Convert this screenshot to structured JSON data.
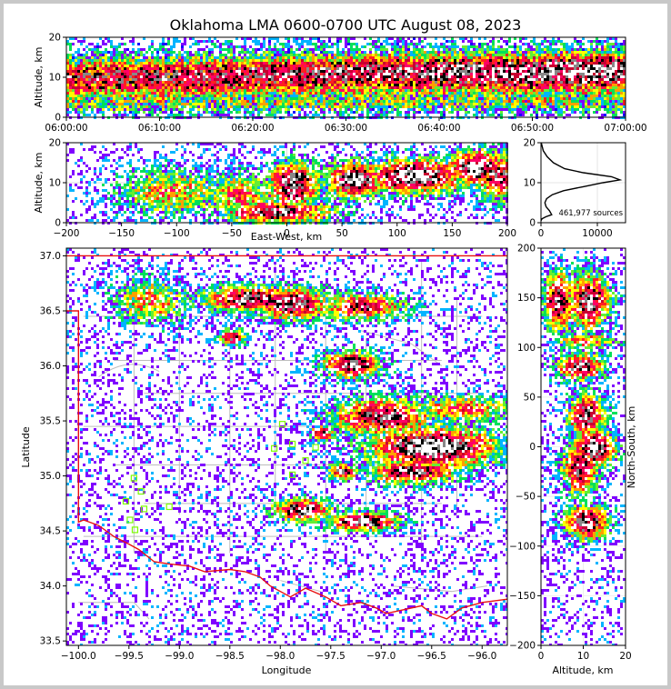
{
  "title": "Oklahoma LMA 0600-0700 UTC August 08, 2023",
  "colors": {
    "border_frame": "#c8c8c8",
    "state_border": "#e81010",
    "county_lines": "#bdbdbd",
    "station_marker": "#7cfc00",
    "profile_line": "#000000",
    "density_scale": [
      "#1a00ff",
      "#7f00ff",
      "#00b4ff",
      "#00e05a",
      "#66ee33",
      "#ffff00",
      "#ffa000",
      "#ff2020",
      "#ff0066",
      "#c80030",
      "#000000",
      "#888888",
      "#ffffff"
    ]
  },
  "chart_data": [
    {
      "id": "time_height",
      "type": "heatmap",
      "xlabel": "",
      "ylabel": "Altitude, km",
      "xticks": [
        "06:00:00",
        "06:10:00",
        "06:20:00",
        "06:30:00",
        "06:40:00",
        "06:50:00",
        "07:00:00"
      ],
      "yticks": [
        "0",
        "10",
        "20"
      ],
      "xlim": [
        "06:00:00",
        "07:00:00"
      ],
      "ylim": [
        0,
        20
      ],
      "core_altitude_km": [
        10.2,
        10.2,
        10.8,
        11.2,
        11.5,
        11.5,
        12.0
      ],
      "core_density_level": [
        0.72,
        0.75,
        0.78,
        0.8,
        0.85,
        0.9,
        0.95
      ]
    },
    {
      "id": "ew_altitude",
      "type": "heatmap",
      "xlabel": "East-West, km",
      "ylabel": "Altitude, km",
      "xticks": [
        "−200",
        "−150",
        "−100",
        "−50",
        "0",
        "50",
        "100",
        "150",
        "200"
      ],
      "yticks": [
        "0",
        "10",
        "20"
      ],
      "xlim": [
        -200,
        200
      ],
      "ylim": [
        0,
        20
      ],
      "blobs": [
        {
          "x": -105,
          "y": 8,
          "sx": 35,
          "sy": 4,
          "level": 0.5
        },
        {
          "x": -45,
          "y": 7,
          "sx": 22,
          "sy": 4,
          "level": 0.55
        },
        {
          "x": 5,
          "y": 10,
          "sx": 16,
          "sy": 4,
          "level": 0.9
        },
        {
          "x": -10,
          "y": 3,
          "sx": 35,
          "sy": 2,
          "level": 0.85
        },
        {
          "x": 60,
          "y": 11,
          "sx": 18,
          "sy": 3,
          "level": 0.97
        },
        {
          "x": 115,
          "y": 12,
          "sx": 32,
          "sy": 3,
          "level": 0.95
        },
        {
          "x": 170,
          "y": 14,
          "sx": 18,
          "sy": 3,
          "level": 0.92
        },
        {
          "x": 190,
          "y": 12,
          "sx": 15,
          "sy": 4,
          "level": 0.8
        }
      ]
    },
    {
      "id": "altitude_histogram",
      "type": "line",
      "xlabel": "",
      "ylabel": "",
      "xticks": [
        "0",
        "10000"
      ],
      "yticks": [
        "0",
        "10",
        "20"
      ],
      "xlim": [
        0,
        15000
      ],
      "ylim": [
        0,
        20
      ],
      "annotation": "461,977 sources",
      "profile": [
        {
          "alt": 0.5,
          "count": 0
        },
        {
          "alt": 1,
          "count": 200
        },
        {
          "alt": 1.5,
          "count": 900
        },
        {
          "alt": 2,
          "count": 1900
        },
        {
          "alt": 3,
          "count": 1500
        },
        {
          "alt": 4,
          "count": 900
        },
        {
          "alt": 5,
          "count": 700
        },
        {
          "alt": 6,
          "count": 1000
        },
        {
          "alt": 7,
          "count": 2000
        },
        {
          "alt": 8,
          "count": 4000
        },
        {
          "alt": 9,
          "count": 7500
        },
        {
          "alt": 10,
          "count": 11000
        },
        {
          "alt": 10.7,
          "count": 14000
        },
        {
          "alt": 11.5,
          "count": 12500
        },
        {
          "alt": 12.5,
          "count": 7500
        },
        {
          "alt": 13.5,
          "count": 4200
        },
        {
          "alt": 15,
          "count": 2200
        },
        {
          "alt": 16.5,
          "count": 1100
        },
        {
          "alt": 18,
          "count": 400
        },
        {
          "alt": 20,
          "count": 50
        }
      ]
    },
    {
      "id": "plan_view",
      "type": "heatmap",
      "xlabel": "Longitude",
      "ylabel": "Latitude",
      "xticks": [
        "−100.0",
        "−99.5",
        "−99.0",
        "−98.5",
        "−98.0",
        "−97.5",
        "−97.0",
        "−96.5",
        "−96.0"
      ],
      "yticks": [
        "33.5",
        "34.0",
        "34.5",
        "35.0",
        "35.5",
        "36.0",
        "36.5",
        "37.0"
      ],
      "xlim": [
        -100.12,
        -95.75
      ],
      "ylim": [
        33.46,
        37.07
      ],
      "blobs": [
        {
          "lon": -99.3,
          "lat": 36.6,
          "slon": 0.25,
          "slat": 0.15,
          "level": 0.5
        },
        {
          "lon": -98.3,
          "lat": 36.62,
          "slon": 0.35,
          "slat": 0.08,
          "level": 0.85
        },
        {
          "lon": -97.9,
          "lat": 36.58,
          "slon": 0.25,
          "slat": 0.1,
          "level": 0.9
        },
        {
          "lon": -97.2,
          "lat": 36.55,
          "slon": 0.3,
          "slat": 0.08,
          "level": 0.75
        },
        {
          "lon": -98.5,
          "lat": 36.27,
          "slon": 0.1,
          "slat": 0.05,
          "level": 0.75
        },
        {
          "lon": -97.3,
          "lat": 36.02,
          "slon": 0.2,
          "slat": 0.08,
          "level": 0.92
        },
        {
          "lon": -97.0,
          "lat": 35.55,
          "slon": 0.35,
          "slat": 0.12,
          "level": 0.82
        },
        {
          "lon": -96.5,
          "lat": 35.27,
          "slon": 0.45,
          "slat": 0.13,
          "level": 1.0
        },
        {
          "lon": -96.2,
          "lat": 35.62,
          "slon": 0.35,
          "slat": 0.08,
          "level": 0.6
        },
        {
          "lon": -96.7,
          "lat": 35.05,
          "slon": 0.3,
          "slat": 0.08,
          "level": 0.82
        },
        {
          "lon": -97.4,
          "lat": 35.05,
          "slon": 0.1,
          "slat": 0.05,
          "level": 0.8
        },
        {
          "lon": -97.8,
          "lat": 34.7,
          "slon": 0.2,
          "slat": 0.07,
          "level": 0.88
        },
        {
          "lon": -97.2,
          "lat": 34.6,
          "slon": 0.25,
          "slat": 0.06,
          "level": 0.92
        },
        {
          "lon": -97.6,
          "lat": 35.4,
          "slon": 0.08,
          "slat": 0.05,
          "level": 0.75
        }
      ],
      "stations": [
        {
          "lon": -99.45,
          "lat": 34.98
        },
        {
          "lon": -99.38,
          "lat": 34.86
        },
        {
          "lon": -99.53,
          "lat": 34.77
        },
        {
          "lon": -99.35,
          "lat": 34.7
        },
        {
          "lon": -99.1,
          "lat": 34.72
        },
        {
          "lon": -99.49,
          "lat": 34.6
        },
        {
          "lon": -99.44,
          "lat": 34.51
        },
        {
          "lon": -97.98,
          "lat": 35.47
        },
        {
          "lon": -98.06,
          "lat": 35.25
        },
        {
          "lon": -97.88,
          "lat": 35.29
        },
        {
          "lon": -97.65,
          "lat": 35.26
        },
        {
          "lon": -97.75,
          "lat": 35.14
        },
        {
          "lon": -97.88,
          "lat": 35.01
        }
      ]
    },
    {
      "id": "altitude_ns",
      "type": "heatmap",
      "xlabel": "Altitude, km",
      "ylabel": "North-South, km",
      "xticks": [
        "0",
        "10",
        "20"
      ],
      "yticks": [
        "−200",
        "−150",
        "−100",
        "−50",
        "0",
        "50",
        "100",
        "150",
        "200"
      ],
      "xlim": [
        0,
        20
      ],
      "ylim": [
        -200,
        200
      ],
      "blobs": [
        {
          "alt": 4,
          "ns": 148,
          "salt": 2.5,
          "sns": 20,
          "level": 0.85
        },
        {
          "alt": 11,
          "ns": 148,
          "salt": 3.5,
          "sns": 20,
          "level": 0.85
        },
        {
          "alt": 10,
          "ns": 108,
          "salt": 5,
          "sns": 5,
          "level": 0.6
        },
        {
          "alt": 9,
          "ns": 82,
          "salt": 4,
          "sns": 10,
          "level": 0.82
        },
        {
          "alt": 10.5,
          "ns": 33,
          "salt": 3,
          "sns": 15,
          "level": 0.88
        },
        {
          "alt": 12.5,
          "ns": 0,
          "salt": 3.5,
          "sns": 12,
          "level": 1.0
        },
        {
          "alt": 9,
          "ns": -20,
          "salt": 3,
          "sns": 18,
          "level": 0.82
        },
        {
          "alt": 10.5,
          "ns": -75,
          "salt": 3.5,
          "sns": 12,
          "level": 0.9
        }
      ]
    }
  ]
}
